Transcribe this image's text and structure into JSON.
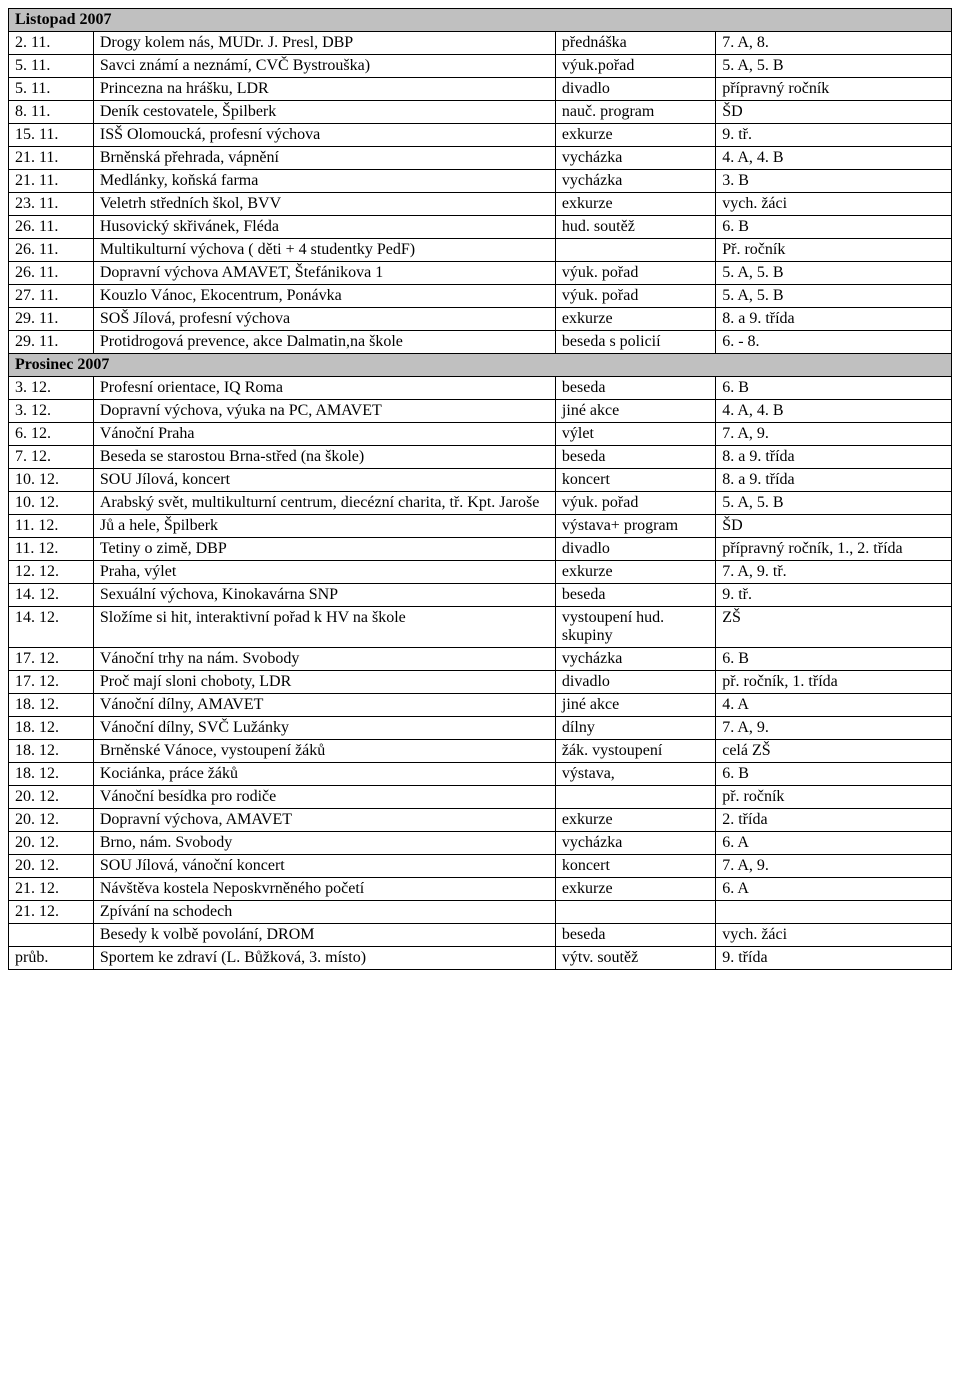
{
  "table": {
    "colors": {
      "header_bg": "#c0c0c0",
      "border": "#000000",
      "text": "#000000",
      "page_bg": "#ffffff"
    },
    "font": {
      "family": "Times New Roman",
      "size_pt": 12
    },
    "columns": [
      "date",
      "desc",
      "type",
      "group"
    ],
    "col_widths_pct": [
      9,
      49,
      17,
      25
    ],
    "rows": [
      {
        "kind": "section",
        "title": "Listopad 2007"
      },
      {
        "date": "2. 11.",
        "desc": "Drogy kolem nás, MUDr. J. Presl, DBP",
        "type": "přednáška",
        "group": "7. A, 8."
      },
      {
        "date": "5. 11.",
        "desc": "Savci známí a neznámí, CVČ Bystrouška)",
        "type": "výuk.pořad",
        "group": "5. A, 5. B"
      },
      {
        "date": "5. 11.",
        "desc": "Princezna na hrášku, LDR",
        "type": "divadlo",
        "group": "přípravný ročník"
      },
      {
        "date": "8. 11.",
        "desc": "Deník cestovatele, Špilberk",
        "type": "nauč. program",
        "group": "ŠD"
      },
      {
        "date": "15. 11.",
        "desc": "ISŠ Olomoucká, profesní výchova",
        "type": "exkurze",
        "group": "9. tř."
      },
      {
        "date": "21. 11.",
        "desc": "Brněnská přehrada, vápnění",
        "type": "vycházka",
        "group": "4. A, 4. B"
      },
      {
        "date": "21. 11.",
        "desc": "Medlánky, koňská farma",
        "type": "vycházka",
        "group": "3. B"
      },
      {
        "date": "23. 11.",
        "desc": "Veletrh středních škol, BVV",
        "type": "exkurze",
        "group": "vych. žáci"
      },
      {
        "date": "26. 11.",
        "desc": "Husovický skřivánek, Fléda",
        "type": "hud. soutěž",
        "group": "6. B"
      },
      {
        "date": "26. 11.",
        "desc": "Multikulturní výchova ( děti + 4 studentky PedF)",
        "type": "",
        "group": "Př. ročník"
      },
      {
        "date": "26. 11.",
        "desc": "Dopravní výchova AMAVET, Štefánikova 1",
        "type": "výuk. pořad",
        "group": "5. A, 5. B"
      },
      {
        "date": "27. 11.",
        "desc": "Kouzlo Vánoc, Ekocentrum, Ponávka",
        "type": "výuk. pořad",
        "group": "5. A, 5. B"
      },
      {
        "date": "29. 11.",
        "desc": "SOŠ Jílová, profesní výchova",
        "type": "exkurze",
        "group": "8. a 9. třída"
      },
      {
        "date": "29. 11.",
        "desc": "Protidrogová prevence, akce Dalmatin,na škole",
        "type": "beseda s policií",
        "group": "6. - 8."
      },
      {
        "kind": "section",
        "title": "Prosinec 2007"
      },
      {
        "date": "3. 12.",
        "desc": "Profesní orientace, IQ Roma",
        "type": "beseda",
        "group": "6. B"
      },
      {
        "date": "3. 12.",
        "desc": "Dopravní výchova, výuka na PC, AMAVET",
        "type": "jiné akce",
        "group": "4. A, 4. B"
      },
      {
        "date": "6. 12.",
        "desc": "Vánoční Praha",
        "type": "výlet",
        "group": "7. A, 9."
      },
      {
        "date": "7. 12.",
        "desc": "Beseda se starostou Brna-střed (na škole)",
        "type": "beseda",
        "group": "8. a 9. třída"
      },
      {
        "date": "10. 12.",
        "desc": "SOU Jílová, koncert",
        "type": "koncert",
        "group": "8. a 9. třída"
      },
      {
        "date": "10. 12.",
        "desc": "Arabský svět, multikulturní centrum, diecézní charita, tř. Kpt. Jaroše",
        "type": "výuk. pořad",
        "group": "5. A, 5. B"
      },
      {
        "date": "11. 12.",
        "desc": "Jů a hele, Špilberk",
        "type": "výstava+ program",
        "group": "ŠD"
      },
      {
        "date": "11. 12.",
        "desc": "Tetiny o zimě, DBP",
        "type": "divadlo",
        "group": "přípravný ročník, 1., 2. třída"
      },
      {
        "date": "12. 12.",
        "desc": "Praha, výlet",
        "type": "exkurze",
        "group": "7. A, 9. tř."
      },
      {
        "date": "14. 12.",
        "desc": "Sexuální výchova, Kinokavárna SNP",
        "type": "beseda",
        "group": "9. tř."
      },
      {
        "date": "14. 12.",
        "desc": "Složíme si hit, interaktivní pořad k HV na škole",
        "type": "vystoupení hud. skupiny",
        "group": "ZŠ"
      },
      {
        "date": "17. 12.",
        "desc": "Vánoční trhy na nám. Svobody",
        "type": "vycházka",
        "group": "6. B"
      },
      {
        "date": "17. 12.",
        "desc": "Proč mají sloni choboty, LDR",
        "type": "divadlo",
        "group": "př. ročník, 1. třída"
      },
      {
        "date": "18. 12.",
        "desc": "Vánoční dílny, AMAVET",
        "type": "jiné akce",
        "group": "4. A"
      },
      {
        "date": "18. 12.",
        "desc": "Vánoční dílny, SVČ Lužánky",
        "type": "dílny",
        "group": "7. A, 9."
      },
      {
        "date": "18. 12.",
        "desc": "Brněnské Vánoce, vystoupení žáků",
        "type": "žák. vystoupení",
        "group": "celá ZŠ"
      },
      {
        "date": "18. 12.",
        "desc": "Kociánka, práce žáků",
        "type": "výstava,",
        "group": "6. B"
      },
      {
        "date": "20. 12.",
        "desc": "Vánoční besídka pro rodiče",
        "type": "",
        "group": "př. ročník"
      },
      {
        "date": "20. 12.",
        "desc": "Dopravní výchova, AMAVET",
        "type": "exkurze",
        "group": "2. třída"
      },
      {
        "date": "20. 12.",
        "desc": "Brno, nám. Svobody",
        "type": "vycházka",
        "group": "6. A"
      },
      {
        "date": "20. 12.",
        "desc": "SOU Jílová, vánoční koncert",
        "type": "koncert",
        "group": "7. A, 9."
      },
      {
        "date": "21. 12.",
        "desc": "Návštěva kostela Neposkvrněného početí",
        "type": "exkurze",
        "group": "6. A"
      },
      {
        "date": "21. 12.",
        "desc": "Zpívání na schodech",
        "type": "",
        "group": ""
      },
      {
        "date": "",
        "desc": "Besedy k volbě povolání, DROM",
        "type": "beseda",
        "group": "vych. žáci"
      },
      {
        "date": "průb.",
        "desc": "Sportem ke zdraví (L. Bůžková, 3. místo)",
        "type": "výtv. soutěž",
        "group": "9. třída"
      }
    ]
  }
}
